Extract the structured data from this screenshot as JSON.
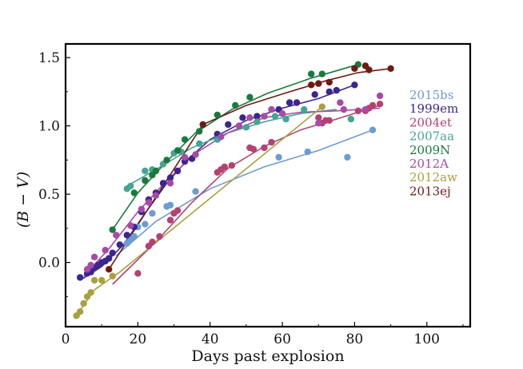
{
  "chart_data": {
    "type": "scatter",
    "xlabel": "Days past explosion",
    "ylabel": "(B − V)",
    "xlim": [
      0,
      112
    ],
    "ylim": [
      -0.47,
      1.6
    ],
    "x_ticks": [
      0,
      20,
      40,
      60,
      80,
      100
    ],
    "y_ticks": [
      0.0,
      0.5,
      1.0,
      1.5
    ],
    "y_tick_labels": [
      "0.0",
      "0.5",
      "1.0",
      "1.5"
    ],
    "grid": false,
    "legend_position": "right",
    "series": [
      {
        "name": "2015bs",
        "color": "#6e9ccf",
        "points": [
          [
            17,
            0.14
          ],
          [
            18,
            0.17
          ],
          [
            19,
            0.19
          ],
          [
            20,
            0.26
          ],
          [
            22,
            0.28
          ],
          [
            24,
            0.36
          ],
          [
            28,
            0.41
          ],
          [
            29,
            0.42
          ],
          [
            36,
            0.52
          ],
          [
            59,
            0.77
          ],
          [
            67,
            0.81
          ],
          [
            78,
            0.77
          ],
          [
            85,
            0.97
          ]
        ],
        "fit": [
          [
            14,
            0.05
          ],
          [
            25,
            0.3
          ],
          [
            40,
            0.54
          ],
          [
            55,
            0.7
          ],
          [
            70,
            0.82
          ],
          [
            85,
            0.97
          ]
        ]
      },
      {
        "name": "1999em",
        "color": "#3b2590",
        "points": [
          [
            4,
            -0.11
          ],
          [
            6,
            -0.08
          ],
          [
            7,
            -0.07
          ],
          [
            8,
            -0.04
          ],
          [
            9,
            -0.02
          ],
          [
            10,
            0.0
          ],
          [
            11,
            0.01
          ],
          [
            12,
            0.03
          ],
          [
            13,
            0.07
          ],
          [
            15,
            0.13
          ],
          [
            17,
            0.2
          ],
          [
            19,
            0.26
          ],
          [
            21,
            0.37
          ],
          [
            23,
            0.46
          ],
          [
            25,
            0.51
          ],
          [
            27,
            0.58
          ],
          [
            29,
            0.62
          ],
          [
            31,
            0.67
          ],
          [
            33,
            0.74
          ],
          [
            35,
            0.76
          ],
          [
            42,
            0.94
          ],
          [
            45,
            1.01
          ],
          [
            49,
            1.06
          ],
          [
            53,
            1.07
          ],
          [
            59,
            1.12
          ],
          [
            62,
            1.17
          ],
          [
            64,
            1.17
          ],
          [
            69,
            1.23
          ],
          [
            73,
            1.25
          ],
          [
            75,
            1.26
          ],
          [
            80,
            1.3
          ]
        ],
        "fit": [
          [
            4,
            -0.13
          ],
          [
            10,
            -0.03
          ],
          [
            16,
            0.13
          ],
          [
            22,
            0.36
          ],
          [
            28,
            0.58
          ],
          [
            34,
            0.76
          ],
          [
            40,
            0.9
          ],
          [
            50,
            1.04
          ],
          [
            60,
            1.13
          ],
          [
            70,
            1.2
          ],
          [
            80,
            1.3
          ]
        ]
      },
      {
        "name": "2004et",
        "color": "#b34272",
        "points": [
          [
            20,
            -0.08
          ],
          [
            23,
            0.12
          ],
          [
            24,
            0.15
          ],
          [
            26,
            0.19
          ],
          [
            29,
            0.31
          ],
          [
            30,
            0.36
          ],
          [
            31,
            0.38
          ],
          [
            42,
            0.66
          ],
          [
            43,
            0.68
          ],
          [
            44,
            0.7
          ],
          [
            46,
            0.71
          ],
          [
            51,
            0.84
          ],
          [
            52,
            0.83
          ],
          [
            55,
            0.84
          ],
          [
            57,
            0.88
          ],
          [
            70,
            1.06
          ],
          [
            71,
            1.02
          ],
          [
            72,
            1.04
          ],
          [
            73,
            1.04
          ],
          [
            81,
            1.11
          ],
          [
            83,
            1.11
          ],
          [
            84,
            1.13
          ],
          [
            85,
            1.15
          ],
          [
            87,
            1.16
          ]
        ],
        "fit": [
          [
            13,
            -0.16
          ],
          [
            25,
            0.15
          ],
          [
            35,
            0.44
          ],
          [
            45,
            0.69
          ],
          [
            55,
            0.85
          ],
          [
            65,
            0.97
          ],
          [
            75,
            1.05
          ],
          [
            87,
            1.15
          ]
        ]
      },
      {
        "name": "2007aa",
        "color": "#45a593",
        "points": [
          [
            17,
            0.54
          ],
          [
            18,
            0.56
          ],
          [
            22,
            0.67
          ],
          [
            24,
            0.68
          ],
          [
            27,
            0.72
          ],
          [
            30,
            0.8
          ],
          [
            32,
            0.81
          ],
          [
            37,
            0.87
          ],
          [
            42,
            0.9
          ],
          [
            50,
            0.99
          ],
          [
            53,
            1.03
          ],
          [
            58,
            1.07
          ],
          [
            61,
            1.05
          ],
          [
            66,
            1.12
          ],
          [
            79,
            1.05
          ]
        ],
        "fit": [
          [
            17,
            0.56
          ],
          [
            25,
            0.68
          ],
          [
            35,
            0.84
          ],
          [
            45,
            0.95
          ],
          [
            55,
            1.03
          ],
          [
            65,
            1.09
          ],
          [
            75,
            1.12
          ]
        ]
      },
      {
        "name": "2009N",
        "color": "#1a7a3c",
        "points": [
          [
            13,
            0.24
          ],
          [
            19,
            0.51
          ],
          [
            22,
            0.6
          ],
          [
            24,
            0.64
          ],
          [
            25,
            0.67
          ],
          [
            28,
            0.75
          ],
          [
            31,
            0.82
          ],
          [
            33,
            0.9
          ],
          [
            37,
            0.96
          ],
          [
            42,
            1.08
          ],
          [
            47,
            1.15
          ],
          [
            51,
            1.21
          ],
          [
            68,
            1.38
          ],
          [
            71,
            1.38
          ],
          [
            81,
            1.45
          ]
        ],
        "fit": [
          [
            13,
            0.24
          ],
          [
            20,
            0.51
          ],
          [
            28,
            0.74
          ],
          [
            36,
            0.95
          ],
          [
            46,
            1.12
          ],
          [
            56,
            1.24
          ],
          [
            68,
            1.35
          ],
          [
            81,
            1.45
          ]
        ]
      },
      {
        "name": "2012A",
        "color": "#a84aa6",
        "points": [
          [
            6,
            -0.05
          ],
          [
            7,
            -0.02
          ],
          [
            8,
            0.04
          ],
          [
            11,
            0.09
          ],
          [
            14,
            0.2
          ],
          [
            18,
            0.27
          ],
          [
            21,
            0.39
          ],
          [
            23,
            0.44
          ],
          [
            25,
            0.49
          ],
          [
            29,
            0.58
          ],
          [
            33,
            0.77
          ],
          [
            36,
            0.79
          ],
          [
            43,
            0.92
          ],
          [
            48,
            1.0
          ],
          [
            51,
            1.06
          ],
          [
            55,
            1.07
          ],
          [
            57,
            1.12
          ],
          [
            60,
            1.09
          ],
          [
            70,
            1.02
          ],
          [
            76,
            1.17
          ],
          [
            77,
            1.12
          ],
          [
            83,
            1.12
          ],
          [
            87,
            1.22
          ]
        ],
        "fit": [
          [
            5,
            -0.1
          ],
          [
            12,
            0.1
          ],
          [
            20,
            0.37
          ],
          [
            28,
            0.6
          ],
          [
            36,
            0.8
          ],
          [
            45,
            0.95
          ],
          [
            55,
            1.06
          ],
          [
            65,
            1.1
          ],
          [
            75,
            1.11
          ],
          [
            87,
            1.13
          ]
        ]
      },
      {
        "name": "2012aw",
        "color": "#a9a03e",
        "points": [
          [
            3,
            -0.39
          ],
          [
            4,
            -0.36
          ],
          [
            5,
            -0.3
          ],
          [
            6,
            -0.25
          ],
          [
            7,
            -0.22
          ],
          [
            8,
            -0.13
          ],
          [
            10,
            -0.13
          ],
          [
            13,
            -0.1
          ],
          [
            71,
            1.14
          ]
        ],
        "fit": [
          [
            3,
            -0.39
          ],
          [
            8,
            -0.2
          ],
          [
            15,
            -0.07
          ],
          [
            71,
            1.14
          ]
        ]
      },
      {
        "name": "2013ej",
        "color": "#6e1a12",
        "points": [
          [
            12,
            -0.05
          ],
          [
            38,
            1.01
          ],
          [
            68,
            1.3
          ],
          [
            70,
            1.31
          ],
          [
            73,
            1.32
          ],
          [
            80,
            1.42
          ],
          [
            83,
            1.44
          ],
          [
            84,
            1.41
          ],
          [
            90,
            1.42
          ]
        ],
        "fit": [
          [
            12,
            -0.05
          ],
          [
            38,
            1.01
          ],
          [
            50,
            1.15
          ],
          [
            62,
            1.25
          ],
          [
            72,
            1.33
          ],
          [
            81,
            1.39
          ],
          [
            90,
            1.42
          ]
        ]
      }
    ]
  }
}
